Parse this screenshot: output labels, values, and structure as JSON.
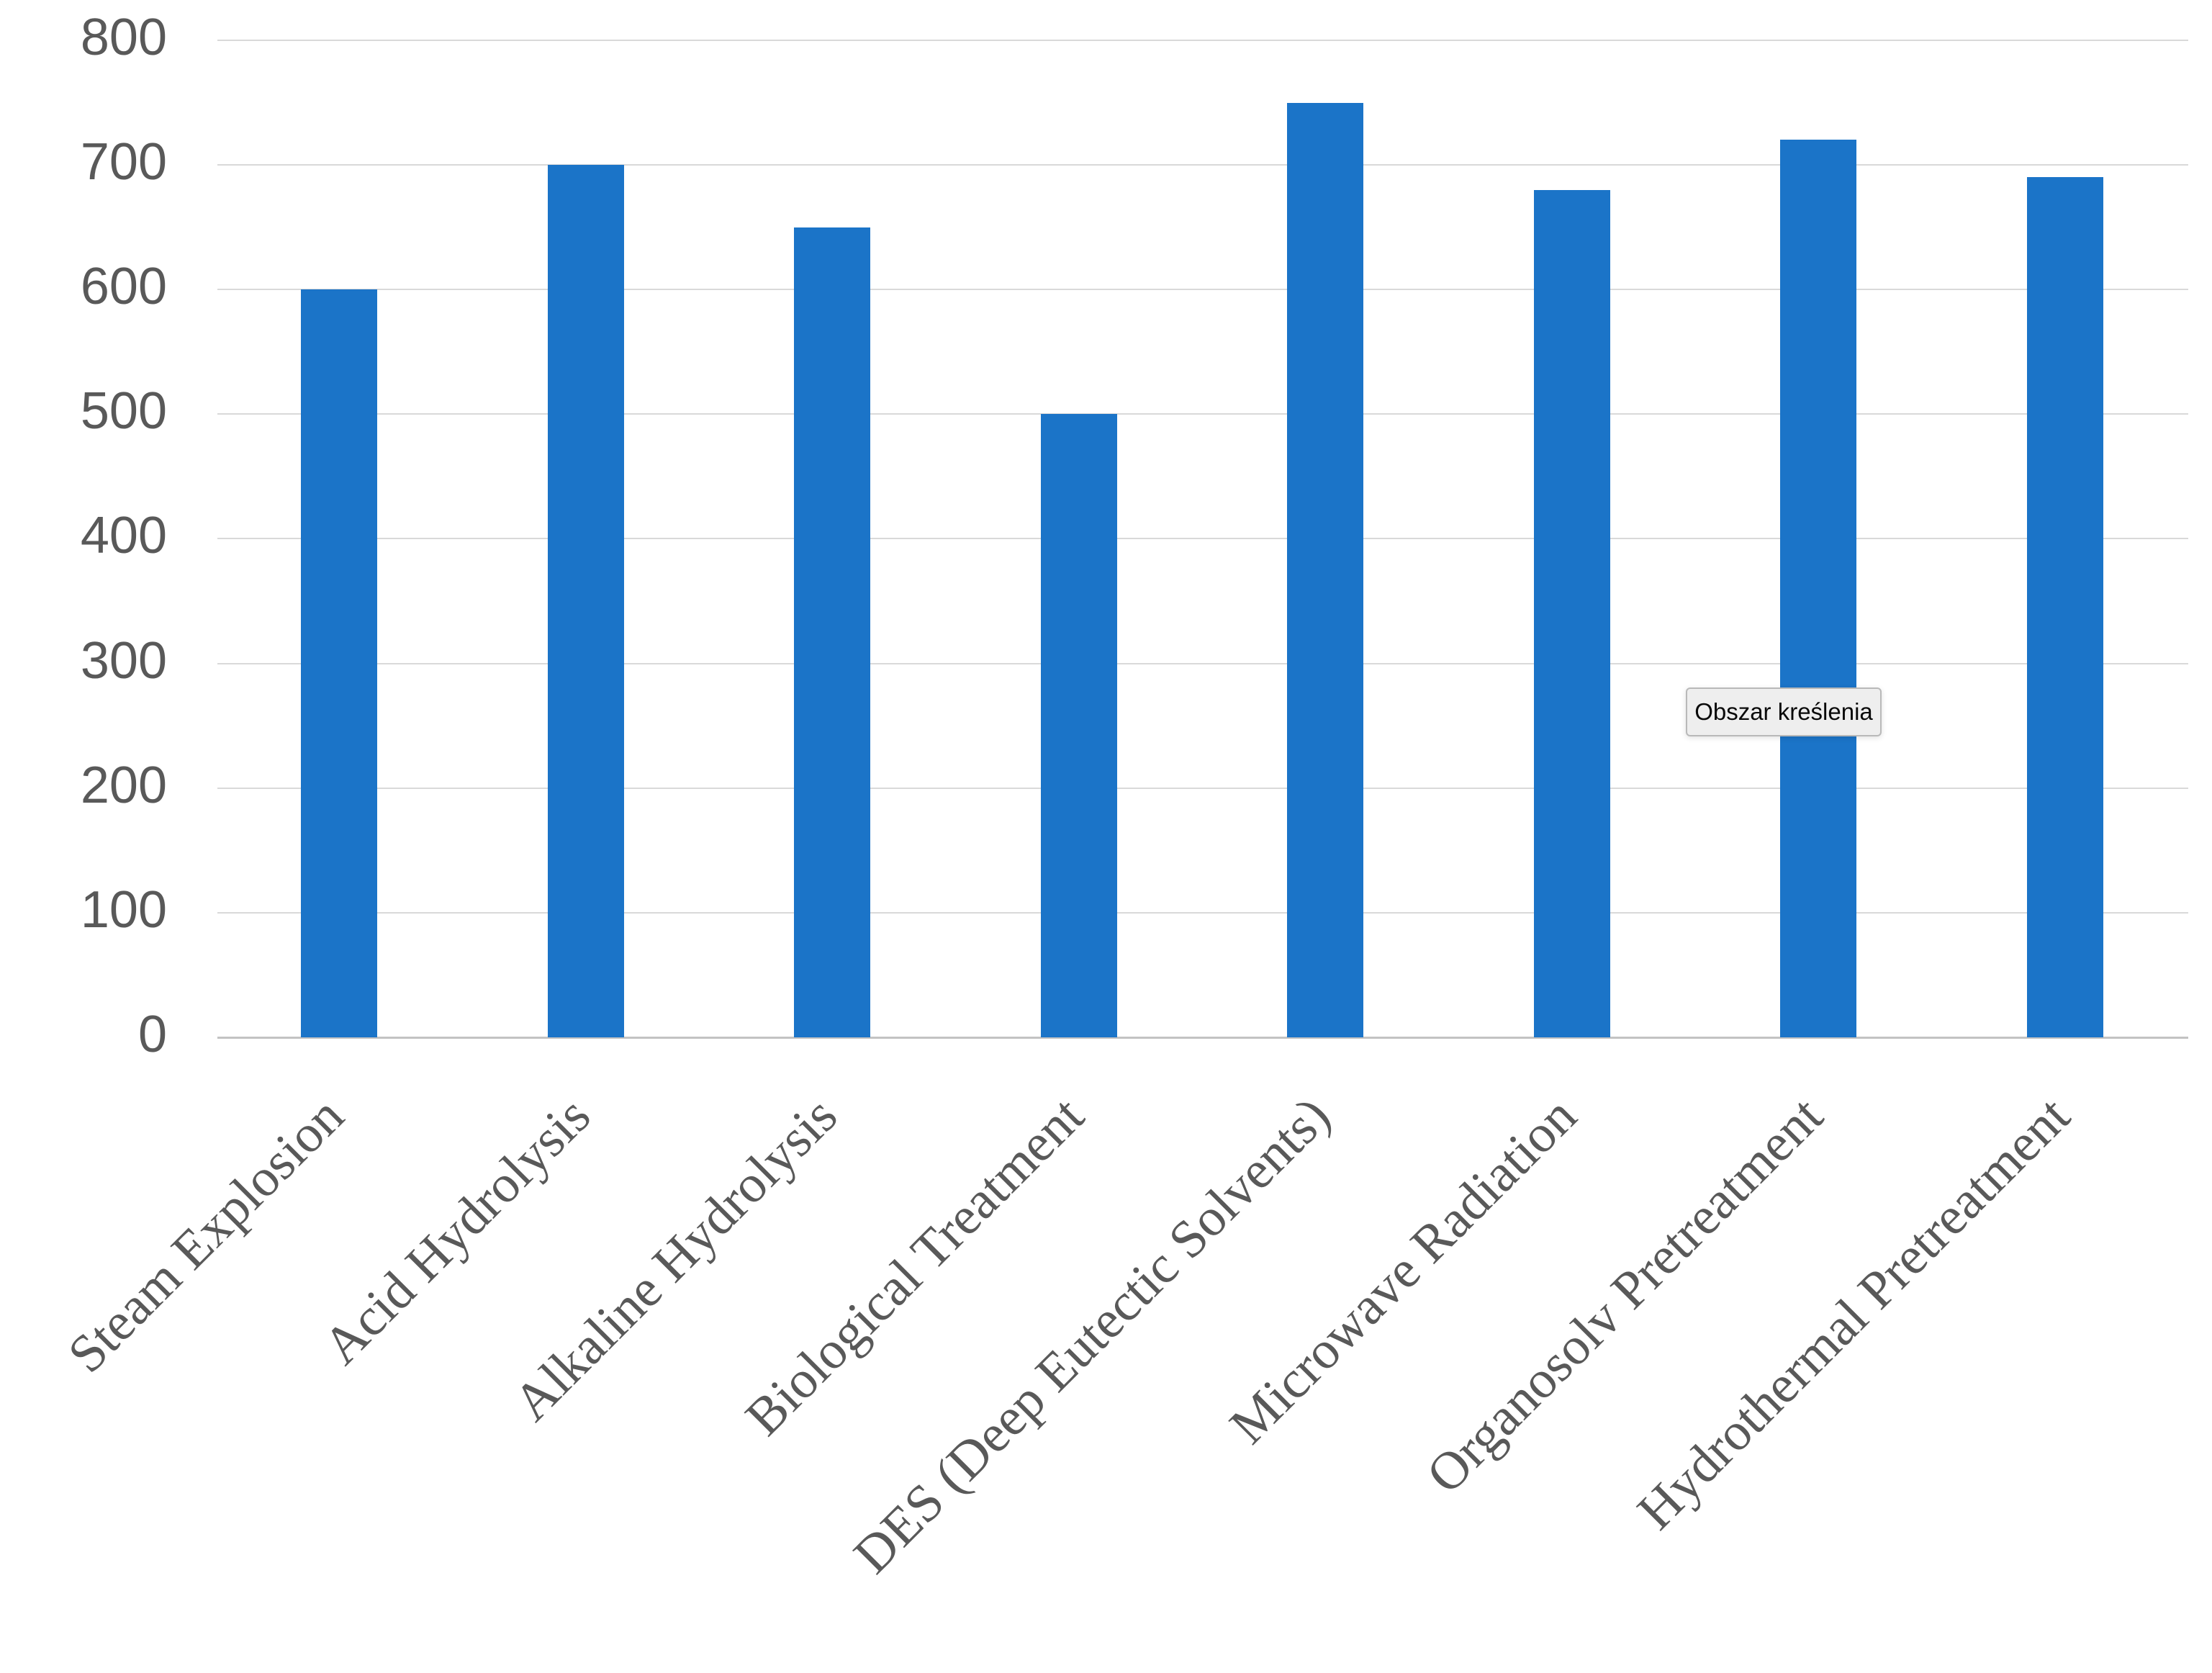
{
  "chart_data": {
    "type": "bar",
    "title": "",
    "xlabel": "",
    "ylabel": "",
    "categories": [
      "Steam Explosion",
      "Acid Hydrolysis",
      "Alkaline Hydrolysis",
      "Biological Treatment",
      "DES (Deep Eutectic Solvents)",
      "Microwave Radiation",
      "Organosolv Pretreatment",
      "Hydrothermal Pretreatment"
    ],
    "values": [
      600,
      700,
      650,
      500,
      750,
      680,
      720,
      690
    ],
    "ylim": [
      0,
      800
    ],
    "yticks": [
      0,
      100,
      200,
      300,
      400,
      500,
      600,
      700,
      800
    ],
    "grid": "horizontal",
    "legend": "none",
    "bar_color": "#1b74c8"
  },
  "tooltip": {
    "label": "Obszar kreślenia"
  },
  "colors": {
    "background": "#ffffff",
    "bar": "#1b74c8",
    "gridline": "#d9d9d9",
    "axis_line": "#c3c3c3",
    "tick_text": "#595959",
    "tooltip_bg": "#eeeeee",
    "tooltip_border": "#b9b9b9",
    "tooltip_text": "#0a0a0a"
  }
}
